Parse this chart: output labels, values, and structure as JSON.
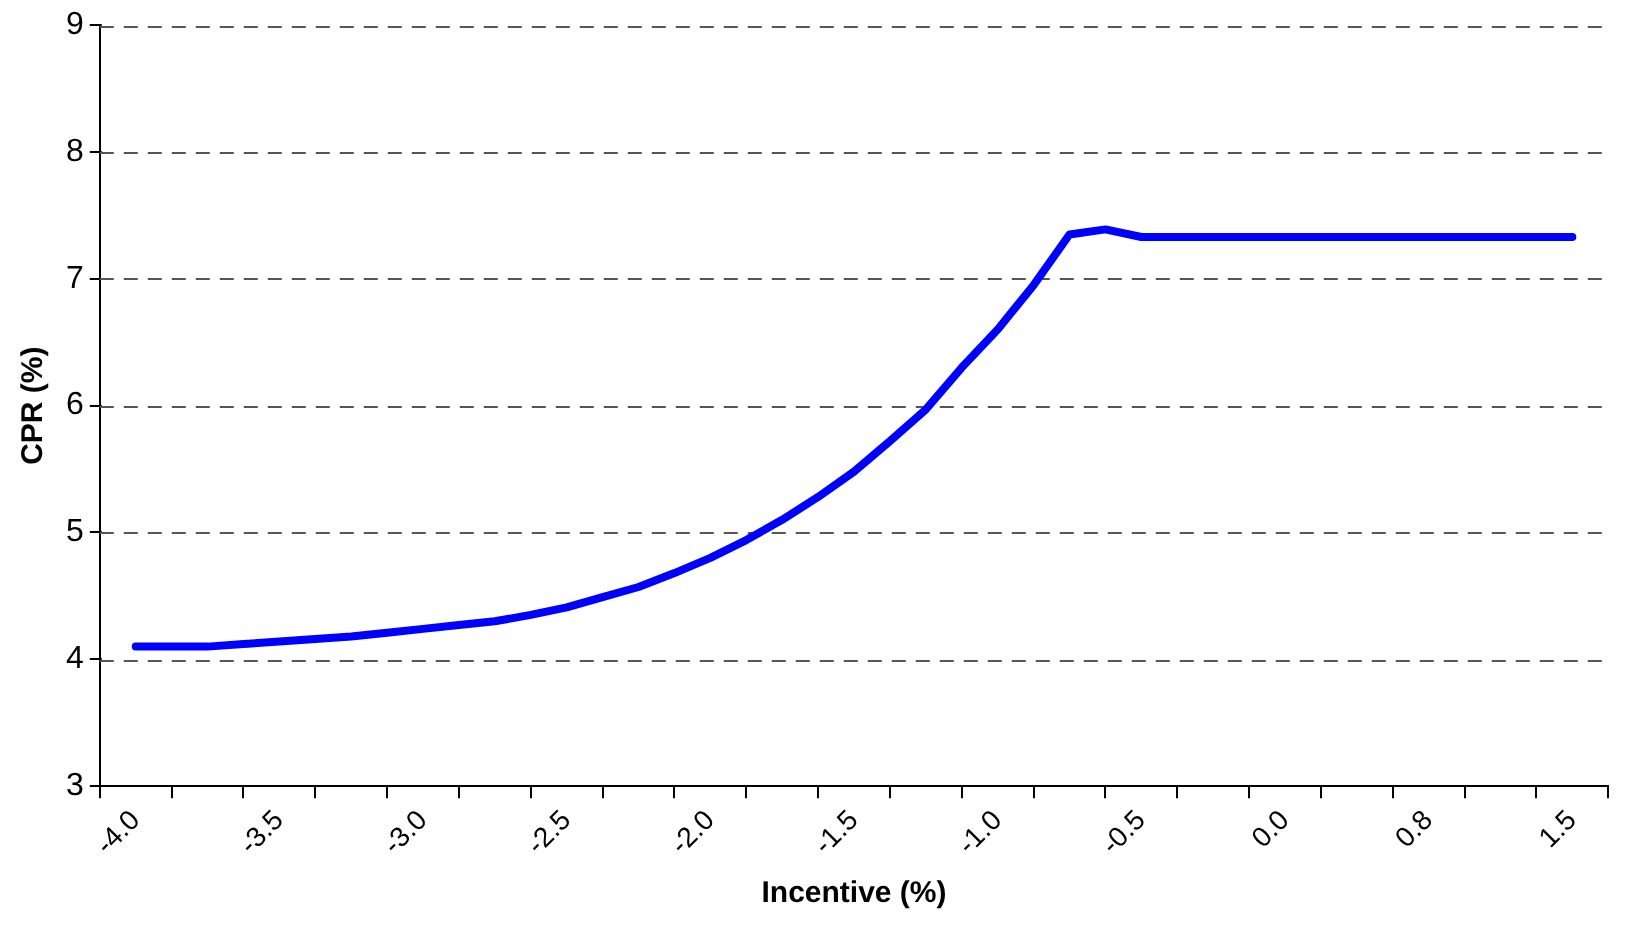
{
  "chart_data": {
    "type": "line",
    "xlabel": "Incentive (%)",
    "ylabel": "CPR (%)",
    "categories": [
      "-4.0",
      null,
      null,
      null,
      "-3.5",
      null,
      null,
      null,
      "-3.0",
      null,
      null,
      null,
      "-2.5",
      null,
      null,
      null,
      "-2.0",
      null,
      null,
      null,
      "-1.5",
      null,
      null,
      null,
      "-1.0",
      null,
      null,
      null,
      "-0.5",
      null,
      null,
      null,
      "0.0",
      null,
      null,
      null,
      "0.8",
      null,
      null,
      null,
      "1.5"
    ],
    "series": [
      {
        "color": "#0000ff",
        "values": [
          4.1,
          4.1,
          4.1,
          4.12,
          4.14,
          4.16,
          4.18,
          4.21,
          4.24,
          4.27,
          4.3,
          4.35,
          4.41,
          4.49,
          4.57,
          4.68,
          4.8,
          4.94,
          5.1,
          5.28,
          5.48,
          5.72,
          5.97,
          6.3,
          6.6,
          6.95,
          7.35,
          7.39,
          7.33,
          7.33,
          7.33,
          7.33,
          7.33,
          7.33,
          7.33,
          7.33,
          7.33,
          7.33,
          7.33,
          7.33,
          7.33
        ]
      }
    ],
    "ylim": [
      3,
      9
    ],
    "yticks": [
      3,
      4,
      5,
      6,
      7,
      8,
      9
    ],
    "grid": "y",
    "legend": false,
    "marker": "none",
    "line_style": "solid"
  }
}
